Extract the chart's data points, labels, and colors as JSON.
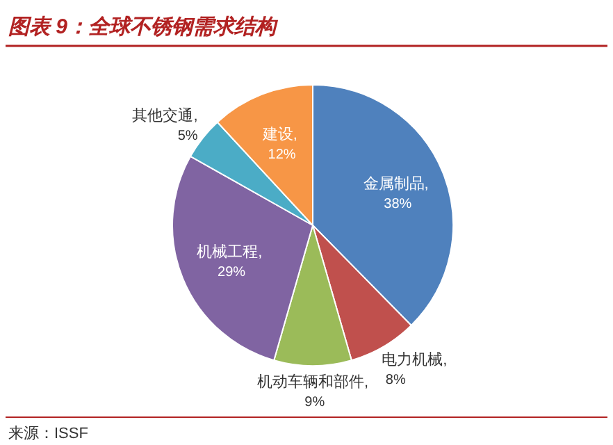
{
  "chart_data": {
    "type": "pie",
    "title": "图表 9：全球不锈钢需求结构",
    "categories": [
      "金属制品",
      "电力机械",
      "机动车辆和部件",
      "机械工程",
      "其他交通",
      "建设"
    ],
    "values": [
      38,
      8,
      9,
      29,
      5,
      12
    ],
    "colors": [
      "#4f81bd",
      "#c0504d",
      "#9bbb59",
      "#8064a2",
      "#4bacc6",
      "#f79646"
    ],
    "value_labels": [
      ",\n38%",
      ",\n8%",
      ",\n9%",
      ",\n29%",
      ",\n5%",
      ",\n12%"
    ],
    "annotations": [
      "来源：ISSF"
    ]
  }
}
